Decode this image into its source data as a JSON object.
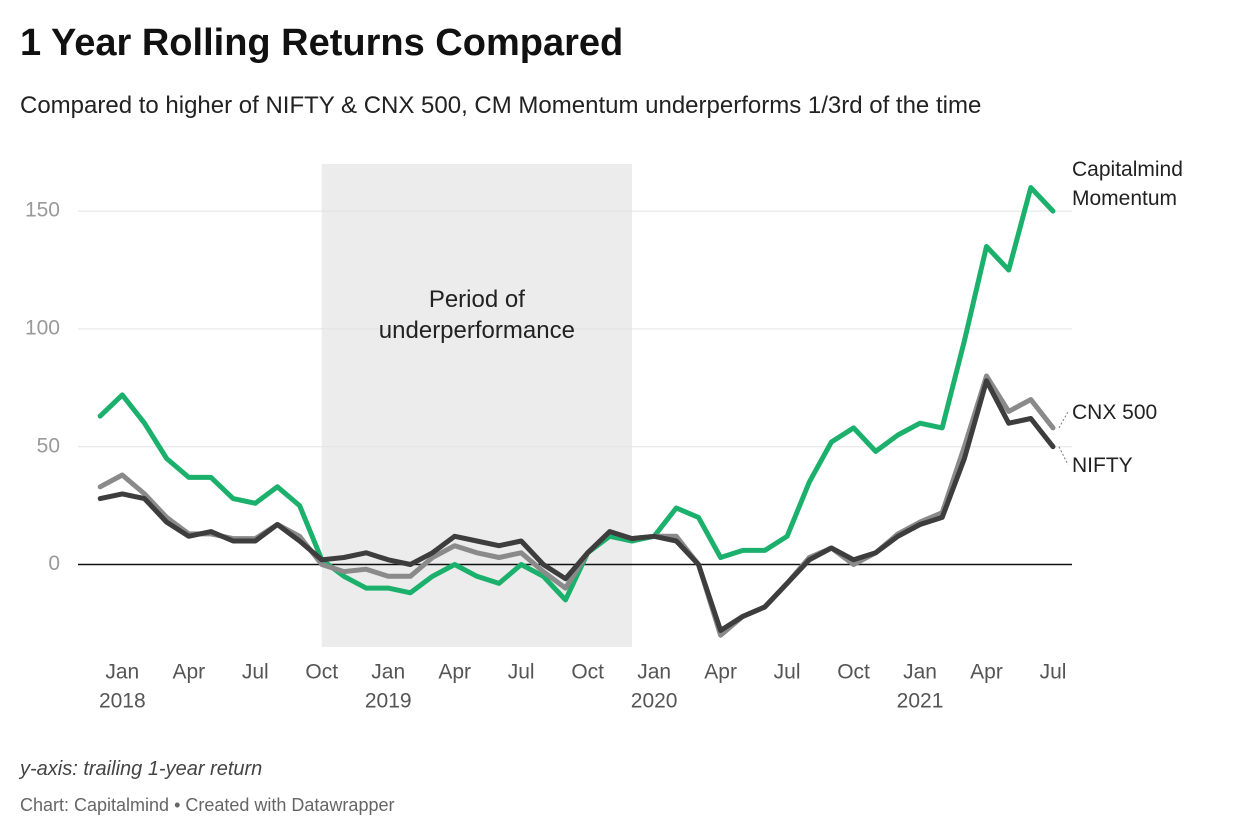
{
  "chart_data": {
    "type": "line",
    "title": "1 Year Rolling Returns Compared",
    "subtitle": "Compared to higher of NIFTY & CNX 500, CM Momentum underperforms 1/3rd of the time",
    "annotation": "Period of underperformance",
    "highlight_range": [
      "2018-10",
      "2019-12"
    ],
    "highlight_color": "#ececec",
    "note": "y-axis: trailing 1-year return",
    "source": "Chart: Capitalmind • Created with Datawrapper",
    "x": [
      "2017-12",
      "2018-01",
      "2018-02",
      "2018-03",
      "2018-04",
      "2018-05",
      "2018-06",
      "2018-07",
      "2018-08",
      "2018-09",
      "2018-10",
      "2018-11",
      "2018-12",
      "2019-01",
      "2019-02",
      "2019-03",
      "2019-04",
      "2019-05",
      "2019-06",
      "2019-07",
      "2019-08",
      "2019-09",
      "2019-10",
      "2019-11",
      "2019-12",
      "2020-01",
      "2020-02",
      "2020-03",
      "2020-04",
      "2020-05",
      "2020-06",
      "2020-07",
      "2020-08",
      "2020-09",
      "2020-10",
      "2020-11",
      "2020-12",
      "2021-01",
      "2021-02",
      "2021-03",
      "2021-04",
      "2021-05",
      "2021-06",
      "2021-07"
    ],
    "series": [
      {
        "name": "Capitalmind Momentum",
        "color": "#1bb16c",
        "values": [
          63,
          72,
          60,
          45,
          37,
          37,
          28,
          26,
          33,
          25,
          2,
          -5,
          -10,
          -10,
          -12,
          -5,
          0,
          -5,
          -8,
          0,
          -5,
          -15,
          5,
          12,
          10,
          12,
          24,
          20,
          3,
          6,
          6,
          12,
          35,
          52,
          58,
          48,
          55,
          60,
          58,
          95,
          135,
          125,
          160,
          150
        ]
      },
      {
        "name": "CNX 500",
        "color": "#8a8a8a",
        "values": [
          33,
          38,
          30,
          20,
          13,
          13,
          11,
          11,
          17,
          12,
          0,
          -3,
          -2,
          -5,
          -5,
          3,
          8,
          5,
          3,
          5,
          -3,
          -10,
          5,
          14,
          11,
          12,
          12,
          0,
          -30,
          -22,
          -18,
          -8,
          3,
          7,
          0,
          5,
          13,
          18,
          22,
          50,
          80,
          65,
          70,
          58
        ]
      },
      {
        "name": "NIFTY",
        "color": "#3d3d3d",
        "values": [
          28,
          30,
          28,
          18,
          12,
          14,
          10,
          10,
          17,
          10,
          2,
          3,
          5,
          2,
          0,
          5,
          12,
          10,
          8,
          10,
          0,
          -6,
          5,
          14,
          11,
          12,
          10,
          0,
          -28,
          -22,
          -18,
          -8,
          2,
          7,
          2,
          5,
          12,
          17,
          20,
          45,
          78,
          60,
          62,
          50
        ]
      }
    ],
    "xlim": [
      "2017-11",
      "2021-07"
    ],
    "xticks": [
      {
        "value": "2018-01",
        "label": "Jan"
      },
      {
        "value": "2018-04",
        "label": "Apr"
      },
      {
        "value": "2018-07",
        "label": "Jul"
      },
      {
        "value": "2018-10",
        "label": "Oct"
      },
      {
        "value": "2019-01",
        "label": "Jan"
      },
      {
        "value": "2019-04",
        "label": "Apr"
      },
      {
        "value": "2019-07",
        "label": "Jul"
      },
      {
        "value": "2019-10",
        "label": "Oct"
      },
      {
        "value": "2020-01",
        "label": "Jan"
      },
      {
        "value": "2020-04",
        "label": "Apr"
      },
      {
        "value": "2020-07",
        "label": "Jul"
      },
      {
        "value": "2020-10",
        "label": "Oct"
      },
      {
        "value": "2021-01",
        "label": "Jan"
      },
      {
        "value": "2021-04",
        "label": "Apr"
      },
      {
        "value": "2021-07",
        "label": "Jul"
      }
    ],
    "x_year_labels": [
      {
        "value": "2018-01",
        "label": "2018"
      },
      {
        "value": "2019-01",
        "label": "2019"
      },
      {
        "value": "2020-01",
        "label": "2020"
      },
      {
        "value": "2021-01",
        "label": "2021"
      }
    ],
    "ylim": [
      -35,
      170
    ],
    "yticks": [
      0,
      50,
      100,
      150
    ],
    "grid": true
  }
}
